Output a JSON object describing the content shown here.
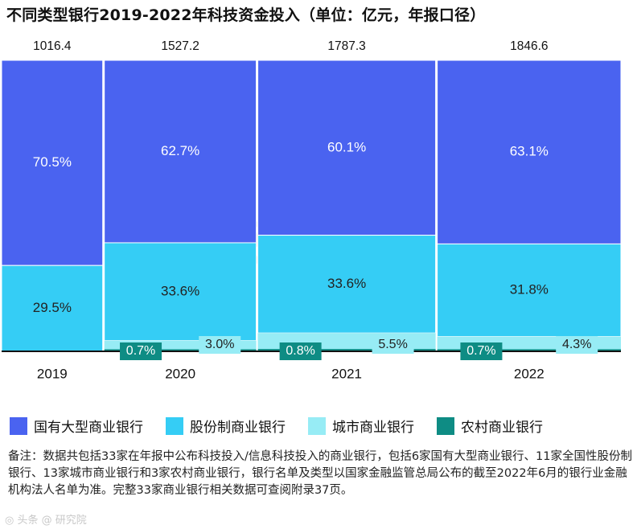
{
  "chart_data": {
    "type": "bar",
    "subtype": "marimekko-stacked-percent",
    "title": "不同类型银行2019-2022年科技资金投入（单位：亿元，年报口径）",
    "categories": [
      "2019",
      "2020",
      "2021",
      "2022"
    ],
    "totals": [
      "1016.4",
      "1527.2",
      "1787.3",
      "1846.6"
    ],
    "series": [
      {
        "name": "国有大型商业银行",
        "color": "#4a63f0",
        "values": [
          70.5,
          62.7,
          60.1,
          63.1
        ],
        "labels": [
          "70.5%",
          "62.7%",
          "60.1%",
          "63.1%"
        ]
      },
      {
        "name": "股份制商业银行",
        "color": "#35cdf5",
        "values": [
          29.5,
          33.6,
          33.6,
          31.8
        ],
        "labels": [
          "29.5%",
          "33.6%",
          "33.6%",
          "31.8%"
        ]
      },
      {
        "name": "城市商业银行",
        "color": "#97ecf5",
        "values": [
          0,
          3.0,
          5.5,
          4.3
        ],
        "labels": [
          "",
          "3.0%",
          "5.5%",
          "4.3%"
        ]
      },
      {
        "name": "农村商业银行",
        "color": "#0e8c84",
        "values": [
          0,
          0.7,
          0.8,
          0.7
        ],
        "labels": [
          "",
          "0.7%",
          "0.8%",
          "0.7%"
        ]
      }
    ],
    "legend_position": "bottom",
    "ylim": [
      0,
      100
    ]
  },
  "note": "备注：数据共包括33家在年报中公布科技投入/信息科技投入的商业银行，包括6家国有大型商业银行、11家全国性股份制银行、13家城市商业银行和3家农村商业银行，银行名单及类型以国家金融监管总局公布的截至2022年6月的银行业金融机构法人名单为准。完整33家商业银行相关数据可查阅附录37页。",
  "footer_watermark": "◎ 头条 @ 研究院"
}
